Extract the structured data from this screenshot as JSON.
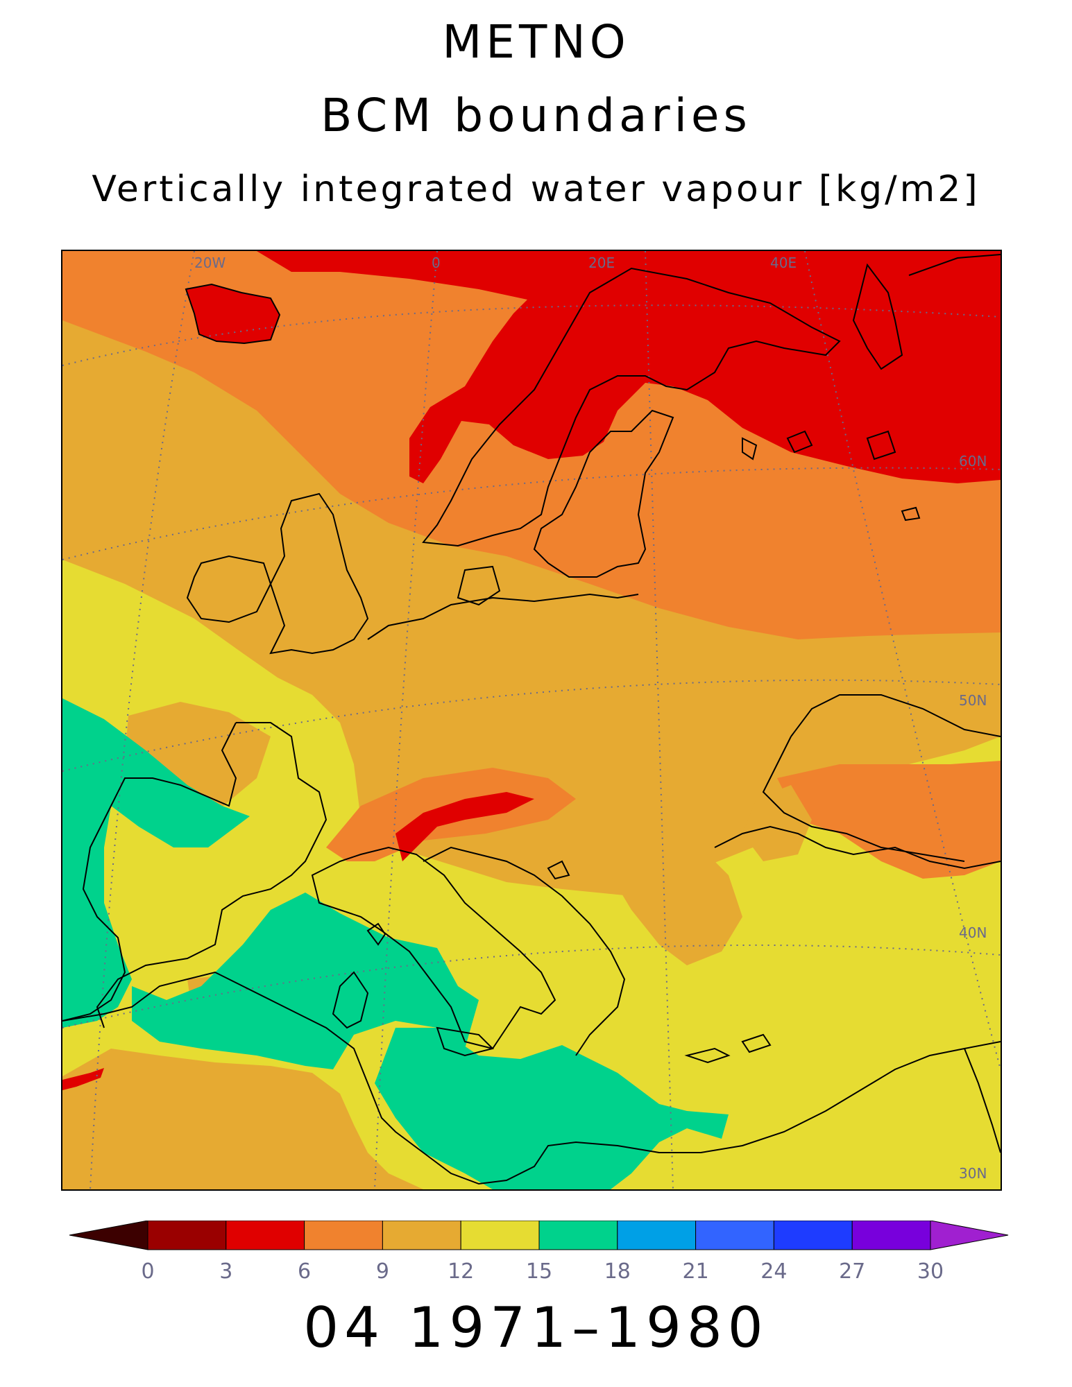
{
  "titles": {
    "line1": "METNO",
    "line2": "BCM boundaries",
    "line3": "Vertically integrated water vapour [kg/m2]"
  },
  "map": {
    "projection": "polar-stereographic",
    "region": "Europe, North Atlantic and Mediterranean",
    "variable": "Vertically integrated water vapour",
    "units": "kg/m2",
    "lon_labels": [
      "20W",
      "0",
      "20E",
      "40E"
    ],
    "lat_labels": [
      "60N",
      "50N",
      "40N",
      "30N"
    ],
    "gridlines": "dotted",
    "coastlines": true
  },
  "colorbar": {
    "tick_labels": [
      "0",
      "3",
      "6",
      "9",
      "12",
      "15",
      "18",
      "21",
      "24",
      "27",
      "30"
    ],
    "below_color": "#3c0000",
    "above_color": "#a020d0",
    "colors": [
      "#9a0000",
      "#e00000",
      "#f0822e",
      "#e6aa32",
      "#e6dc32",
      "#00d28c",
      "#00a0e6",
      "#3264ff",
      "#1e3cff",
      "#7800dc",
      "#a000c8"
    ]
  },
  "footer": {
    "label": "04 1971–1980"
  }
}
